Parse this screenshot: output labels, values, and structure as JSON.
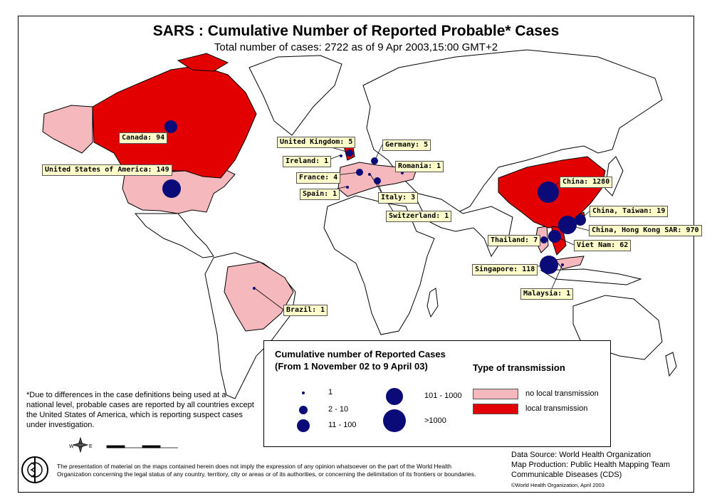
{
  "title": "SARS : Cumulative Number of Reported Probable* Cases",
  "subtitle": "Total number of cases: 2722 as of 9 Apr 2003,15:00 GMT+2",
  "colors": {
    "local": "#e30000",
    "no_local": "#f4b8bd",
    "bubble": "#0a0a78",
    "label_bg": "#ffffcc"
  },
  "countries": [
    {
      "name": "Canada",
      "cases": 94,
      "label": "Canada: 94"
    },
    {
      "name": "United States of America",
      "cases": 149,
      "label": "United States of America: 149"
    },
    {
      "name": "United Kingdom",
      "cases": 5,
      "label": "United Kingdom: 5"
    },
    {
      "name": "Ireland",
      "cases": 1,
      "label": "Ireland: 1"
    },
    {
      "name": "France",
      "cases": 4,
      "label": "France: 4"
    },
    {
      "name": "Spain",
      "cases": 1,
      "label": "Spain: 1"
    },
    {
      "name": "Germany",
      "cases": 5,
      "label": "Germany: 5"
    },
    {
      "name": "Romania",
      "cases": 1,
      "label": "Romania: 1"
    },
    {
      "name": "Italy",
      "cases": 3,
      "label": "Italy: 3"
    },
    {
      "name": "Switzerland",
      "cases": 1,
      "label": "Switzerland: 1"
    },
    {
      "name": "China",
      "cases": 1280,
      "label": "China: 1280"
    },
    {
      "name": "China, Taiwan",
      "cases": 19,
      "label": "China, Taiwan: 19"
    },
    {
      "name": "China, Hong Kong SAR",
      "cases": 970,
      "label": "China, Hong Kong SAR: 970"
    },
    {
      "name": "Viet Nam",
      "cases": 62,
      "label": "Viet Nam: 62"
    },
    {
      "name": "Thailand",
      "cases": 7,
      "label": "Thailand: 7"
    },
    {
      "name": "Singapore",
      "cases": 118,
      "label": "Singapore: 118"
    },
    {
      "name": "Malaysia",
      "cases": 1,
      "label": "Malaysia: 1"
    },
    {
      "name": "Brazil",
      "cases": 1,
      "label": "Brazil: 1"
    }
  ],
  "legend": {
    "title_line1": "Cumulative number of Reported Cases",
    "title_line2": "(From 1 November 02 to 9 April 03)",
    "sizes": [
      "1",
      "2 - 10",
      "11 - 100",
      "101 - 1000",
      ">1000"
    ],
    "transmission_title": "Type of transmission",
    "no_local": "no local transmission",
    "local": "local transmission"
  },
  "footnote": "*Due to differences in the case definitions being used at a national level, probable cases are reported by all countries except the United States of America, which is reporting suspect cases under investigation.",
  "disclaimer": "The presentation of material on the maps contained herein does not imply the expression of any opinion whatsoever on the part of the World Health Organization concerning the legal status of any country, territory, city or areas or of its authorities, or concerning the delimitation of its frontiers or boundaries.",
  "source": {
    "line1": "Data Source: World Health Organization",
    "line2": "Map Production: Public Health Mapping Team",
    "line3": "Communicable Diseases (CDS)",
    "copyright": "©World Health Organization, April 2003"
  }
}
